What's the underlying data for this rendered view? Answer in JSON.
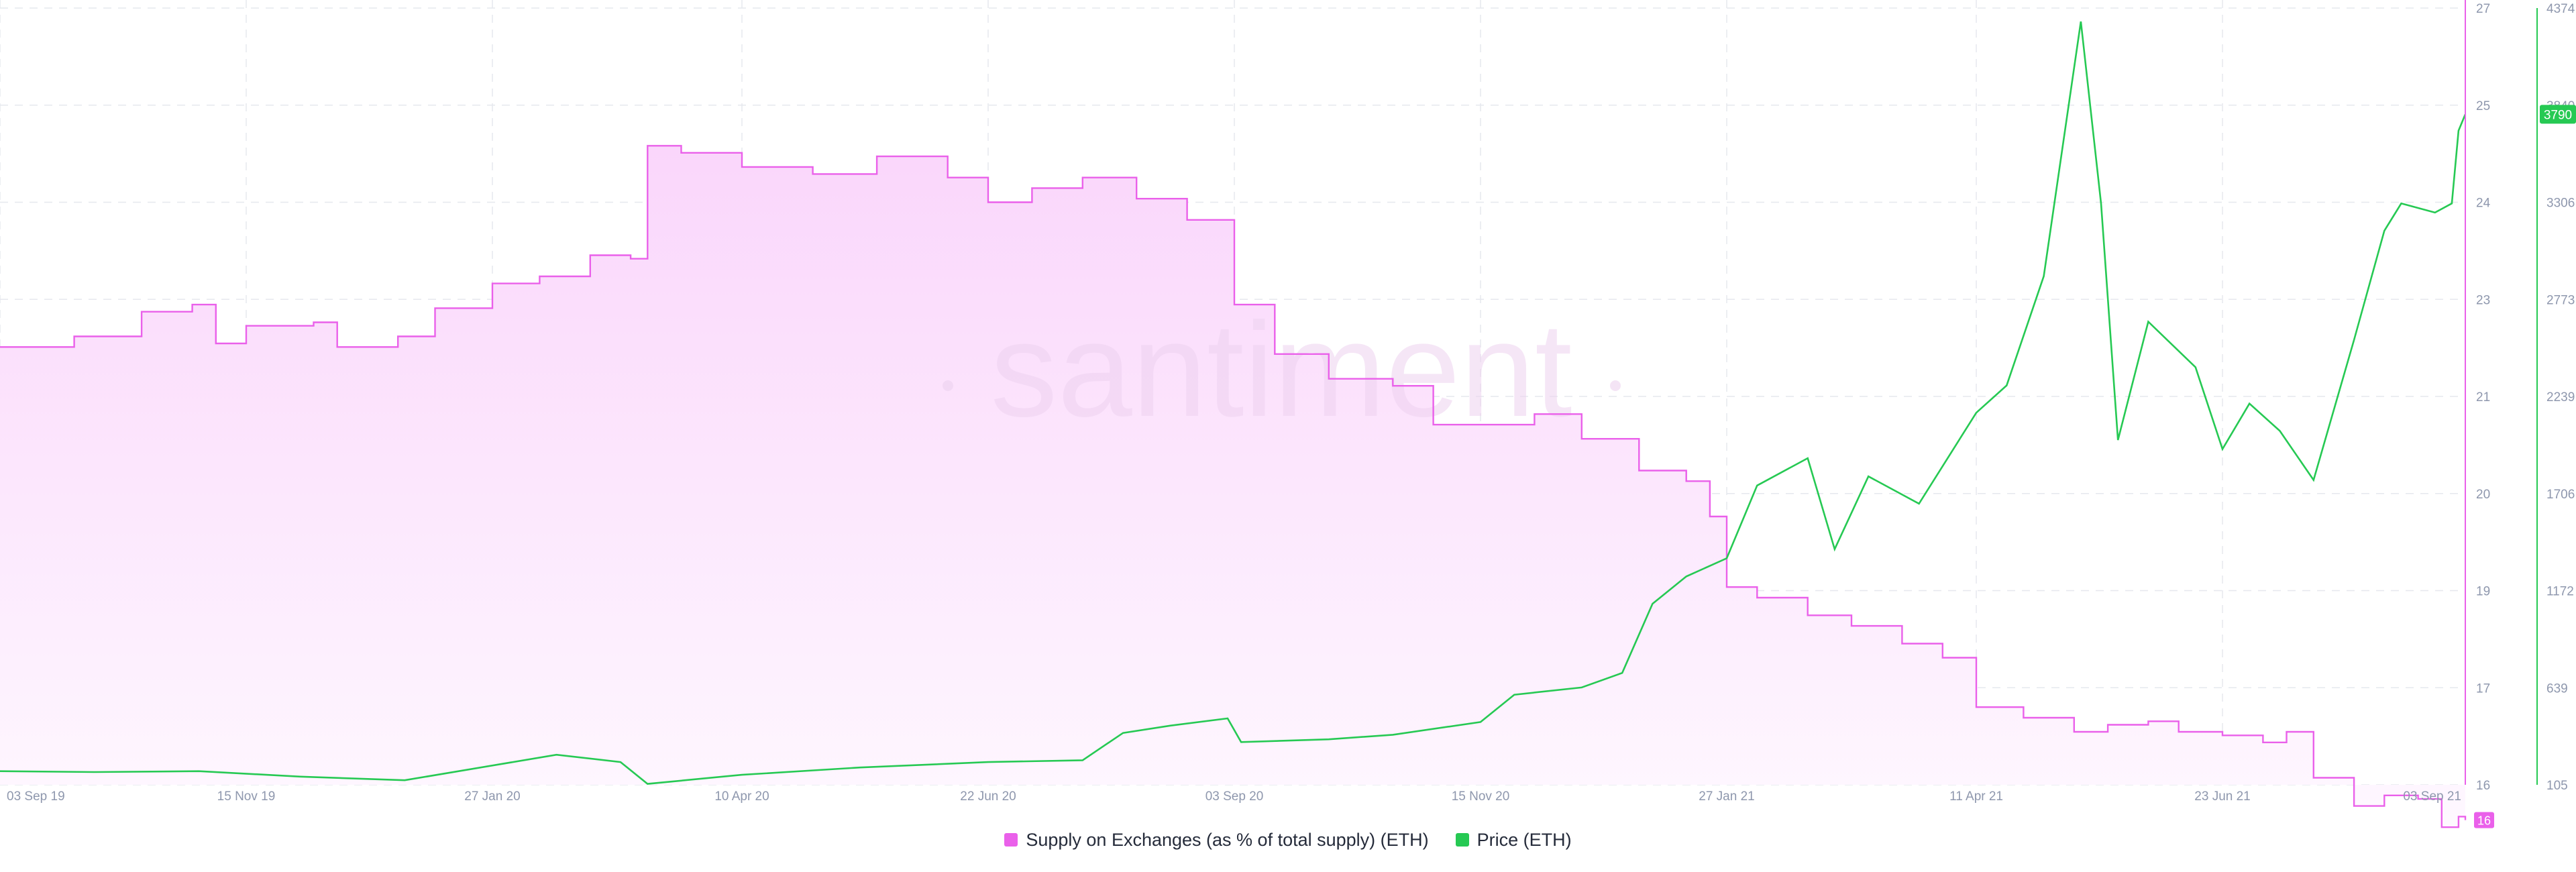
{
  "watermark": "santiment",
  "colors": {
    "supply": "#ea60ea",
    "price": "#26c953",
    "grid": "#e6e8ee",
    "axis_text": "#8e97ad"
  },
  "legend": {
    "supply_label": "Supply on Exchanges (as % of total supply) (ETH)",
    "price_label": "Price (ETH)"
  },
  "chart_data": {
    "type": "line",
    "x_ticks": [
      "03 Sep 19",
      "15 Nov 19",
      "27 Jan 20",
      "10 Apr 20",
      "22 Jun 20",
      "03 Sep 20",
      "15 Nov 20",
      "27 Jan 21",
      "11 Apr 21",
      "23 Jun 21",
      "03 Sep 21"
    ],
    "y_left_ticks": [
      "27",
      "25",
      "24",
      "23",
      "21",
      "20",
      "19",
      "17",
      "16"
    ],
    "y_right_ticks": [
      "4374",
      "3840",
      "3306",
      "2773",
      "2239",
      "1706",
      "1172",
      "639",
      "105"
    ],
    "y_left_range": [
      16,
      27
    ],
    "y_right_range": [
      105,
      4374
    ],
    "grid": true,
    "legend_position": "bottom",
    "current_labels": {
      "supply": "16",
      "price": "3790"
    },
    "series": [
      {
        "name": "Supply on Exchanges (as % of total supply) (ETH)",
        "axis": "left",
        "fill": true,
        "points": [
          [
            "03 Sep 19",
            22.2
          ],
          [
            "25 Sep 19",
            22.35
          ],
          [
            "15 Oct 19",
            22.7
          ],
          [
            "30 Oct 19",
            22.8
          ],
          [
            "06 Nov 19",
            22.25
          ],
          [
            "15 Nov 19",
            22.5
          ],
          [
            "05 Dec 19",
            22.55
          ],
          [
            "12 Dec 19",
            22.2
          ],
          [
            "30 Dec 19",
            22.35
          ],
          [
            "10 Jan 20",
            22.75
          ],
          [
            "27 Jan 20",
            23.1
          ],
          [
            "10 Feb 20",
            23.2
          ],
          [
            "25 Feb 20",
            23.5
          ],
          [
            "08 Mar 20",
            23.45
          ],
          [
            "13 Mar 20",
            25.05
          ],
          [
            "23 Mar 20",
            24.95
          ],
          [
            "10 Apr 20",
            24.75
          ],
          [
            "01 May 20",
            24.65
          ],
          [
            "20 May 20",
            24.9
          ],
          [
            "10 Jun 20",
            24.6
          ],
          [
            "22 Jun 20",
            24.25
          ],
          [
            "05 Jul 20",
            24.45
          ],
          [
            "20 Jul 20",
            24.6
          ],
          [
            "05 Aug 20",
            24.3
          ],
          [
            "20 Aug 20",
            24.0
          ],
          [
            "03 Sep 20",
            22.8
          ],
          [
            "15 Sep 20",
            22.1
          ],
          [
            "01 Oct 20",
            21.75
          ],
          [
            "20 Oct 20",
            21.65
          ],
          [
            "01 Nov 20",
            21.1
          ],
          [
            "15 Nov 20",
            21.1
          ],
          [
            "01 Dec 20",
            21.25
          ],
          [
            "15 Dec 20",
            20.9
          ],
          [
            "01 Jan 21",
            20.45
          ],
          [
            "15 Jan 21",
            20.3
          ],
          [
            "22 Jan 21",
            19.8
          ],
          [
            "27 Jan 21",
            18.8
          ],
          [
            "05 Feb 21",
            18.65
          ],
          [
            "20 Feb 21",
            18.4
          ],
          [
            "05 Mar 21",
            18.25
          ],
          [
            "20 Mar 21",
            18.0
          ],
          [
            "01 Apr 21",
            17.8
          ],
          [
            "11 Apr 21",
            17.1
          ],
          [
            "25 Apr 21",
            16.95
          ],
          [
            "10 May 21",
            16.75
          ],
          [
            "20 May 21",
            16.85
          ],
          [
            "01 Jun 21",
            16.9
          ],
          [
            "10 Jun 21",
            16.75
          ],
          [
            "23 Jun 21",
            16.7
          ],
          [
            "05 Jul 21",
            16.6
          ],
          [
            "12 Jul 21",
            16.75
          ],
          [
            "20 Jul 21",
            16.1
          ],
          [
            "01 Aug 21",
            15.7
          ],
          [
            "10 Aug 21",
            15.85
          ],
          [
            "20 Aug 21",
            15.8
          ],
          [
            "27 Aug 21",
            15.4
          ],
          [
            "01 Sep 21",
            15.55
          ],
          [
            "03 Sep 21",
            15.5
          ]
        ]
      },
      {
        "name": "Price (ETH)",
        "axis": "right",
        "fill": false,
        "points": [
          [
            "03 Sep 19",
            180
          ],
          [
            "01 Oct 19",
            175
          ],
          [
            "01 Nov 19",
            180
          ],
          [
            "01 Dec 19",
            150
          ],
          [
            "01 Jan 20",
            130
          ],
          [
            "15 Feb 20",
            270
          ],
          [
            "05 Mar 20",
            230
          ],
          [
            "13 Mar 20",
            110
          ],
          [
            "10 Apr 20",
            160
          ],
          [
            "15 May 20",
            200
          ],
          [
            "22 Jun 20",
            230
          ],
          [
            "20 Jul 20",
            240
          ],
          [
            "01 Aug 20",
            390
          ],
          [
            "15 Aug 20",
            430
          ],
          [
            "01 Sep 20",
            470
          ],
          [
            "05 Sep 20",
            340
          ],
          [
            "01 Oct 20",
            355
          ],
          [
            "20 Oct 20",
            380
          ],
          [
            "15 Nov 20",
            450
          ],
          [
            "25 Nov 20",
            600
          ],
          [
            "15 Dec 20",
            640
          ],
          [
            "27 Dec 20",
            720
          ],
          [
            "05 Jan 21",
            1100
          ],
          [
            "15 Jan 21",
            1250
          ],
          [
            "27 Jan 21",
            1350
          ],
          [
            "05 Feb 21",
            1750
          ],
          [
            "20 Feb 21",
            1900
          ],
          [
            "28 Feb 21",
            1400
          ],
          [
            "10 Mar 21",
            1800
          ],
          [
            "25 Mar 21",
            1650
          ],
          [
            "11 Apr 21",
            2150
          ],
          [
            "20 Apr 21",
            2300
          ],
          [
            "01 May 21",
            2900
          ],
          [
            "12 May 21",
            4300
          ],
          [
            "18 May 21",
            3300
          ],
          [
            "23 May 21",
            2000
          ],
          [
            "01 Jun 21",
            2650
          ],
          [
            "15 Jun 21",
            2400
          ],
          [
            "23 Jun 21",
            1950
          ],
          [
            "01 Jul 21",
            2200
          ],
          [
            "10 Jul 21",
            2050
          ],
          [
            "20 Jul 21",
            1780
          ],
          [
            "01 Aug 21",
            2550
          ],
          [
            "10 Aug 21",
            3150
          ],
          [
            "15 Aug 21",
            3300
          ],
          [
            "25 Aug 21",
            3250
          ],
          [
            "30 Aug 21",
            3300
          ],
          [
            "01 Sep 21",
            3700
          ],
          [
            "03 Sep 21",
            3790
          ]
        ]
      }
    ]
  }
}
